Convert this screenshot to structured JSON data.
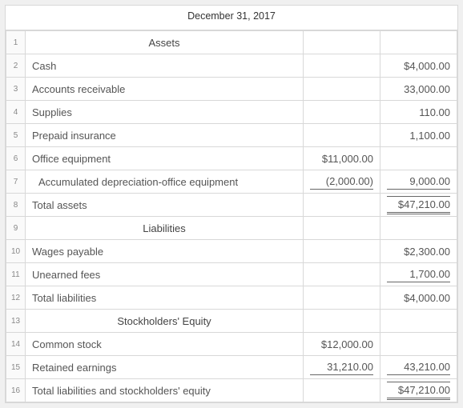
{
  "title": "December 31, 2017",
  "sections": {
    "assets": {
      "header": "Assets",
      "liabilities_header": "Liabilities",
      "equity_header": "Stockholders' Equity"
    }
  },
  "rows": [
    {
      "n": "1",
      "label": "Assets",
      "col1": "",
      "col2": "",
      "style": "header"
    },
    {
      "n": "2",
      "label": "Cash",
      "col1": "",
      "col2": "$4,000.00",
      "style": ""
    },
    {
      "n": "3",
      "label": "Accounts receivable",
      "col1": "",
      "col2": "33,000.00",
      "style": ""
    },
    {
      "n": "4",
      "label": "Supplies",
      "col1": "",
      "col2": "110.00",
      "style": ""
    },
    {
      "n": "5",
      "label": "Prepaid insurance",
      "col1": "",
      "col2": "1,100.00",
      "style": ""
    },
    {
      "n": "6",
      "label": "Office equipment",
      "col1": "$11,000.00",
      "col2": "",
      "style": ""
    },
    {
      "n": "7",
      "label": "Accumulated depreciation-office equipment",
      "col1": "(2,000.00)",
      "col2": "9,000.00",
      "style": "indent",
      "col1_rule": "single",
      "col2_rule": "single"
    },
    {
      "n": "8",
      "label": "Total assets",
      "col1": "",
      "col2": "$47,210.00",
      "style": "",
      "col2_rule": "total"
    },
    {
      "n": "9",
      "label": "Liabilities",
      "col1": "",
      "col2": "",
      "style": "header"
    },
    {
      "n": "10",
      "label": "Wages payable",
      "col1": "",
      "col2": "$2,300.00",
      "style": ""
    },
    {
      "n": "11",
      "label": "Unearned fees",
      "col1": "",
      "col2": "1,700.00",
      "style": "",
      "col2_rule": "single"
    },
    {
      "n": "12",
      "label": "Total liabilities",
      "col1": "",
      "col2": "$4,000.00",
      "style": ""
    },
    {
      "n": "13",
      "label": "Stockholders' Equity",
      "col1": "",
      "col2": "",
      "style": "header"
    },
    {
      "n": "14",
      "label": "Common stock",
      "col1": "$12,000.00",
      "col2": "",
      "style": ""
    },
    {
      "n": "15",
      "label": "Retained earnings",
      "col1": "31,210.00",
      "col2": "43,210.00",
      "style": "",
      "col1_rule": "single",
      "col2_rule": "single"
    },
    {
      "n": "16",
      "label": "Total liabilities and stockholders' equity",
      "col1": "",
      "col2": "$47,210.00",
      "style": "",
      "col2_rule": "total"
    }
  ]
}
